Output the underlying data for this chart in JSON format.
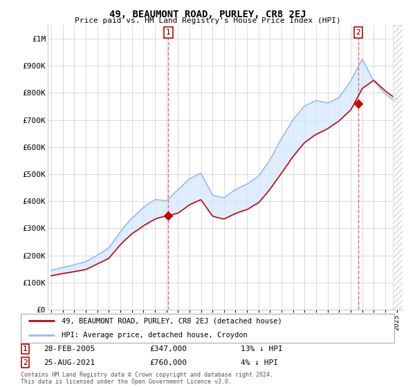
{
  "title": "49, BEAUMONT ROAD, PURLEY, CR8 2EJ",
  "subtitle": "Price paid vs. HM Land Registry's House Price Index (HPI)",
  "background_color": "#ffffff",
  "grid_color": "#cccccc",
  "hpi_color": "#99bbee",
  "hpi_fill_color": "#d0e8ff",
  "sold_color": "#cc0000",
  "dashed_color": "#ee6666",
  "sale1": {
    "date_num": 2005.17,
    "price": 347000,
    "label": "1"
  },
  "sale2": {
    "date_num": 2021.65,
    "price": 760000,
    "label": "2"
  },
  "legend_line1": "49, BEAUMONT ROAD, PURLEY, CR8 2EJ (detached house)",
  "legend_line2": "HPI: Average price, detached house, Croydon",
  "table_row1": [
    "1",
    "28-FEB-2005",
    "£347,000",
    "13% ↓ HPI"
  ],
  "table_row2": [
    "2",
    "25-AUG-2021",
    "£760,000",
    "4% ↓ HPI"
  ],
  "footer": "Contains HM Land Registry data © Crown copyright and database right 2024.\nThis data is licensed under the Open Government Licence v3.0.",
  "ylim": [
    0,
    1050000
  ],
  "yticks": [
    0,
    100000,
    200000,
    300000,
    400000,
    500000,
    600000,
    700000,
    800000,
    900000,
    1000000
  ],
  "ytick_labels": [
    "£0",
    "£100K",
    "£200K",
    "£300K",
    "£400K",
    "£500K",
    "£600K",
    "£700K",
    "£800K",
    "£900K",
    "£1M"
  ],
  "xlim_start": 1994.7,
  "xlim_end": 2025.5
}
